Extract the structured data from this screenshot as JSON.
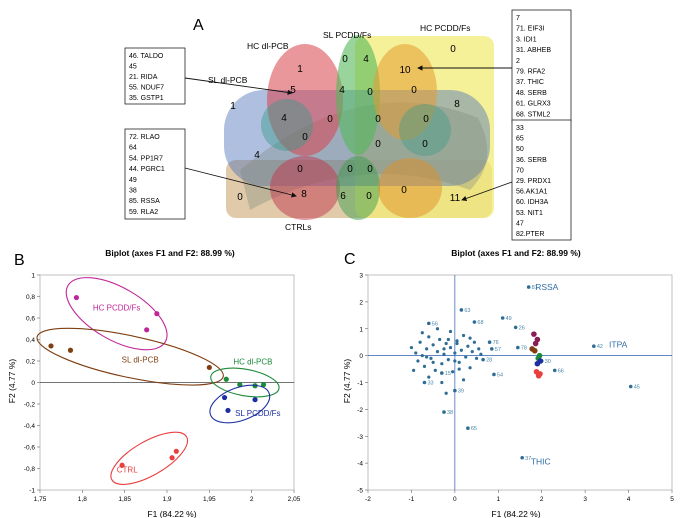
{
  "panel_a": {
    "letter": "A",
    "sets": {
      "hc_dl": "HC dl-PCB",
      "sl_pcdd": "SL PCDD/Fs",
      "hc_pcdd": "HC PCDD/Fs",
      "sl_dl": "SL dl-PCB",
      "ctrl": "CTRLs"
    },
    "counts": [
      {
        "id": "hc-dl-only",
        "v": "1"
      },
      {
        "id": "sl-pcdd-only",
        "v": "0"
      },
      {
        "id": "sl-pcdd-hc-pcdd",
        "v": "4"
      },
      {
        "id": "hc-pcdd-only",
        "v": "0"
      },
      {
        "id": "hc-pcdd-main",
        "v": "10"
      },
      {
        "id": "sl-dl-only",
        "v": "1"
      },
      {
        "id": "hc-dl-sl-dl",
        "v": "5"
      },
      {
        "id": "center-4",
        "v": "4"
      },
      {
        "id": "center-0a",
        "v": "0"
      },
      {
        "id": "hc-pcdd-mid-0",
        "v": "0"
      },
      {
        "id": "right-8",
        "v": "8"
      },
      {
        "id": "left-4",
        "v": "4"
      },
      {
        "id": "mid-0b",
        "v": "0"
      },
      {
        "id": "mid-0c",
        "v": "0"
      },
      {
        "id": "mid-0d",
        "v": "0"
      },
      {
        "id": "mid-0e",
        "v": "0"
      },
      {
        "id": "left-lower-4",
        "v": "4"
      },
      {
        "id": "mid-0f",
        "v": "0"
      },
      {
        "id": "mid-0g",
        "v": "0"
      },
      {
        "id": "mid-0h",
        "v": "0"
      },
      {
        "id": "mid-0i",
        "v": "0"
      },
      {
        "id": "ctrl-only",
        "v": "0"
      },
      {
        "id": "ctrl-8",
        "v": "8"
      },
      {
        "id": "ctrl-6",
        "v": "6"
      },
      {
        "id": "ctrl-0j",
        "v": "0"
      },
      {
        "id": "ctrl-0k",
        "v": "0"
      },
      {
        "id": "ctrl-11",
        "v": "11"
      },
      {
        "id": "ctrl-0l",
        "v": "0"
      }
    ],
    "box_topleft": [
      "46. TALDO",
      "45",
      "21. RIDA",
      "55. NDUF7",
      "35. GSTP1"
    ],
    "box_topright": [
      "7",
      "71. EIF3I",
      "3. IDI1",
      "31. ABHEB",
      "2",
      "79. RFA2",
      "37. THIC",
      "48. SERB",
      "61. GLRX3",
      "68. STML2"
    ],
    "box_bottomleft": [
      "72. RLAO",
      "64",
      "54. PP1R7",
      "44. PGRC1",
      "49",
      "38",
      "85. RSSA",
      "59. RLA2"
    ],
    "box_bottomright": [
      "33",
      "65",
      "50",
      "36. SERB",
      "70",
      "29. PRDX1",
      "56.AK1A1",
      "60. IDH3A",
      "53. NIT1",
      "47",
      "82.PTER"
    ]
  },
  "panel_b": {
    "letter": "B",
    "chart_data": {
      "type": "scatter",
      "title": "Biplot (axes F1 and F2: 88.99 %)",
      "xlabel": "F1 (84.22 %)",
      "ylabel": "F2 (4.77 %)",
      "xlim": [
        1.75,
        2.05
      ],
      "ylim": [
        -1,
        1
      ],
      "xticks": [
        "1,75",
        "1,8",
        "1,85",
        "1,9",
        "1,95",
        "2",
        "2,05"
      ],
      "yticks": [
        "1",
        "0,8",
        "0,6",
        "0,4",
        "0,2",
        "0",
        "-0,2",
        "-0,4",
        "-0,6",
        "-0,8",
        "-1"
      ],
      "groups": [
        {
          "name": "HC PCDD/Fs",
          "color": "#c0259a",
          "points": [
            [
              1.793,
              0.79
            ],
            [
              1.876,
              0.49
            ],
            [
              1.888,
              0.64
            ]
          ]
        },
        {
          "name": "SL dl-PCB",
          "color": "#7f3f12",
          "points": [
            [
              1.763,
              0.34
            ],
            [
              1.786,
              0.3
            ],
            [
              1.95,
              0.14
            ]
          ]
        },
        {
          "name": "HC dl-PCB",
          "color": "#1b8a3a",
          "points": [
            [
              1.97,
              0.03
            ],
            [
              1.986,
              -0.02
            ],
            [
              2.004,
              -0.03
            ],
            [
              2.014,
              -0.02
            ]
          ]
        },
        {
          "name": "SL PCDD/Fs",
          "color": "#1c2fa0",
          "points": [
            [
              1.968,
              -0.14
            ],
            [
              1.972,
              -0.26
            ],
            [
              2.004,
              -0.16
            ]
          ]
        },
        {
          "name": "CTRL",
          "color": "#e8403f",
          "points": [
            [
              1.847,
              -0.77
            ],
            [
              1.906,
              -0.7
            ],
            [
              1.911,
              -0.64
            ]
          ]
        }
      ]
    }
  },
  "panel_c": {
    "letter": "C",
    "chart_data": {
      "type": "scatter",
      "title": "Biplot (axes F1 and F2: 88.99 %)",
      "xlabel": "F1 (84.22 %)",
      "ylabel": "F2 (4.77 %)",
      "xlim": [
        -2,
        5
      ],
      "ylim": [
        -5,
        3
      ],
      "xticks": [
        "-2",
        "-1",
        "0",
        "1",
        "2",
        "3",
        "4",
        "5"
      ],
      "yticks": [
        "3",
        "2",
        "1",
        "0",
        "-1",
        "-2",
        "-3",
        "-4",
        "-5"
      ],
      "annotations": [
        {
          "text": "RSSA",
          "x": 1.85,
          "y": 2.45
        },
        {
          "text": "ITPA",
          "x": 3.55,
          "y": 0.3
        },
        {
          "text": "THIC",
          "x": 1.75,
          "y": -4.05
        }
      ],
      "labeled_points": [
        {
          "label": "81",
          "x": 1.7,
          "y": 2.55
        },
        {
          "label": "42",
          "x": 3.2,
          "y": 0.35
        },
        {
          "label": "45",
          "x": 4.05,
          "y": -1.15
        },
        {
          "label": "37",
          "x": 1.55,
          "y": -3.8
        },
        {
          "label": "65",
          "x": 0.3,
          "y": -2.7
        },
        {
          "label": "49",
          "x": 1.1,
          "y": 1.4
        },
        {
          "label": "26",
          "x": 1.4,
          "y": 1.05
        },
        {
          "label": "68",
          "x": 0.45,
          "y": 1.25
        },
        {
          "label": "63",
          "x": 0.15,
          "y": 1.7
        },
        {
          "label": "76",
          "x": 0.8,
          "y": 0.5
        },
        {
          "label": "57",
          "x": 0.85,
          "y": 0.25
        },
        {
          "label": "78",
          "x": 1.45,
          "y": 0.3
        },
        {
          "label": "28",
          "x": 0.65,
          "y": -0.15
        },
        {
          "label": "54",
          "x": 0.9,
          "y": -0.7
        },
        {
          "label": "39",
          "x": 0.0,
          "y": -1.3
        },
        {
          "label": "38",
          "x": -0.25,
          "y": -2.1
        },
        {
          "label": "33",
          "x": -0.7,
          "y": -1.0
        },
        {
          "label": "30",
          "x": 2.0,
          "y": -0.2
        },
        {
          "label": "66",
          "x": 2.3,
          "y": -0.55
        },
        {
          "label": "56",
          "x": -0.6,
          "y": 1.2
        },
        {
          "label": "15",
          "x": -0.3,
          "y": -0.65
        }
      ],
      "cluster_points": [
        [
          -1.0,
          0.3
        ],
        [
          -0.9,
          0.1
        ],
        [
          -0.85,
          -0.2
        ],
        [
          -0.8,
          0.5
        ],
        [
          -0.75,
          0.0
        ],
        [
          -0.7,
          -0.4
        ],
        [
          -0.65,
          0.25
        ],
        [
          -0.6,
          0.7
        ],
        [
          -0.55,
          -0.1
        ],
        [
          -0.5,
          0.4
        ],
        [
          -0.45,
          -0.55
        ],
        [
          -0.4,
          0.15
        ],
        [
          -0.35,
          0.6
        ],
        [
          -0.3,
          -0.3
        ],
        [
          -0.25,
          0.05
        ],
        [
          -0.2,
          0.45
        ],
        [
          -0.15,
          -0.15
        ],
        [
          -0.1,
          0.3
        ],
        [
          -0.05,
          -0.6
        ],
        [
          0.0,
          0.1
        ],
        [
          0.05,
          0.55
        ],
        [
          0.1,
          -0.25
        ],
        [
          0.15,
          0.2
        ],
        [
          0.2,
          0.75
        ],
        [
          0.25,
          -0.05
        ],
        [
          0.3,
          0.35
        ],
        [
          0.35,
          -0.45
        ],
        [
          0.4,
          0.15
        ],
        [
          0.45,
          0.5
        ],
        [
          0.5,
          -0.1
        ],
        [
          0.55,
          0.25
        ],
        [
          0.6,
          0.05
        ],
        [
          -0.95,
          -0.55
        ],
        [
          -0.6,
          -0.8
        ],
        [
          -0.3,
          -1.0
        ],
        [
          -0.1,
          0.9
        ],
        [
          0.2,
          -0.9
        ],
        [
          -0.4,
          1.0
        ],
        [
          -0.2,
          -1.4
        ],
        [
          0.05,
          0.45
        ],
        [
          -0.75,
          0.85
        ],
        [
          -0.5,
          -0.25
        ],
        [
          0.1,
          -0.5
        ],
        [
          -0.25,
          0.25
        ],
        [
          -0.15,
          0.6
        ],
        [
          0.35,
          0.65
        ],
        [
          -0.65,
          -0.05
        ],
        [
          0.0,
          -0.2
        ]
      ],
      "colored_points": [
        {
          "color": "#8a1c55",
          "x": 1.82,
          "y": 0.8
        },
        {
          "color": "#8a1c55",
          "x": 1.9,
          "y": 0.6
        },
        {
          "color": "#8a1c55",
          "x": 1.86,
          "y": 0.45
        },
        {
          "color": "#7f3f12",
          "x": 1.78,
          "y": 0.25
        },
        {
          "color": "#7f3f12",
          "x": 1.84,
          "y": 0.18
        },
        {
          "color": "#1b8a3a",
          "x": 1.95,
          "y": 0.0
        },
        {
          "color": "#1b8a3a",
          "x": 1.92,
          "y": -0.1
        },
        {
          "color": "#1c2fa0",
          "x": 1.97,
          "y": -0.2
        },
        {
          "color": "#1c2fa0",
          "x": 1.9,
          "y": -0.3
        },
        {
          "color": "#e8403f",
          "x": 1.88,
          "y": -0.6
        },
        {
          "color": "#e8403f",
          "x": 1.93,
          "y": -0.75
        },
        {
          "color": "#e8403f",
          "x": 1.96,
          "y": -0.68
        }
      ]
    }
  }
}
